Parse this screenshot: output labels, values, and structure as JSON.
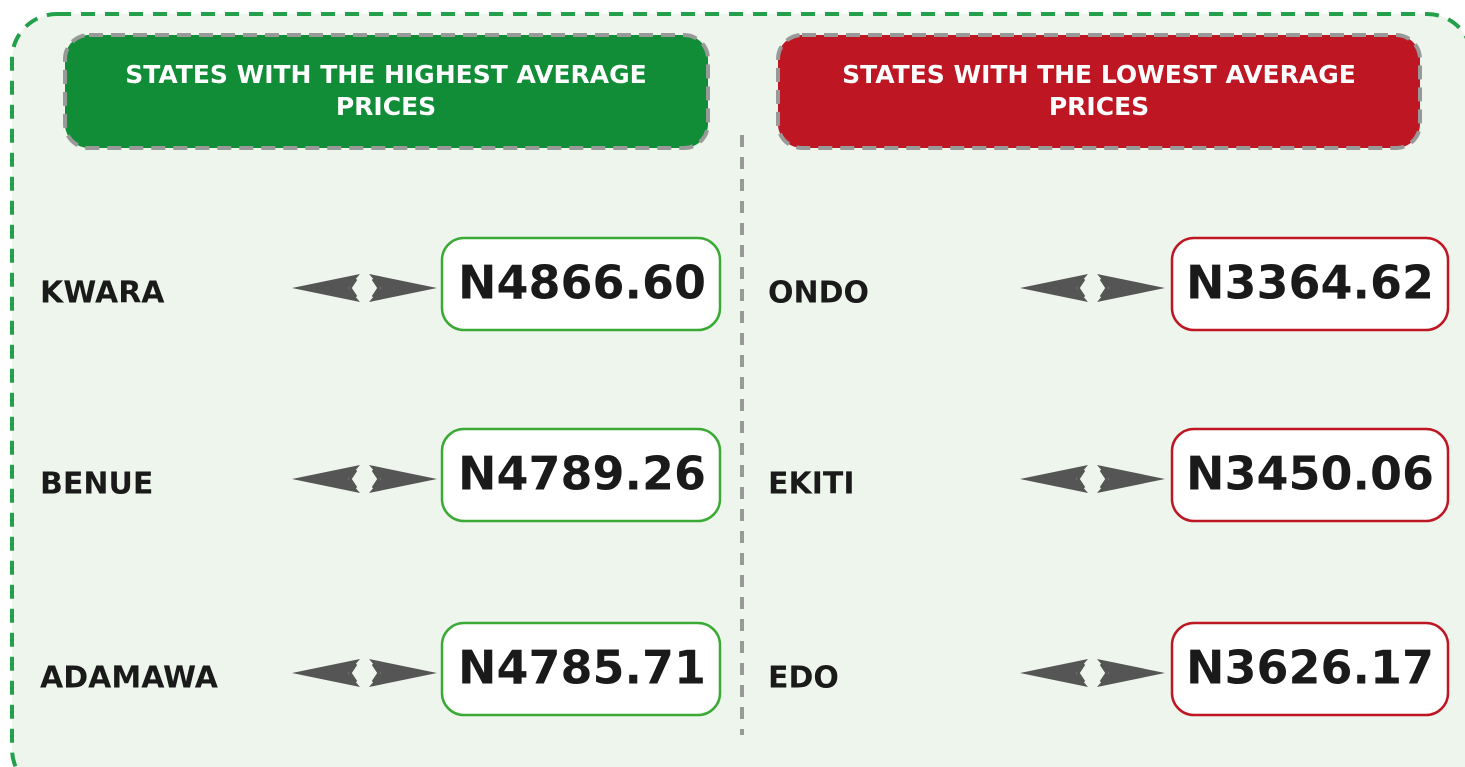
{
  "left": {
    "title": "STATES WITH THE HIGHEST AVERAGE PRICES",
    "rows": [
      {
        "state": "KWARA",
        "price": "N4866.60"
      },
      {
        "state": "BENUE",
        "price": "N4789.26"
      },
      {
        "state": "ADAMAWA",
        "price": "N4785.71"
      }
    ]
  },
  "right": {
    "title": "STATES WITH THE LOWEST AVERAGE PRICES",
    "rows": [
      {
        "state": "ONDO",
        "price": "N3364.62"
      },
      {
        "state": "EKITI",
        "price": "N3450.06"
      },
      {
        "state": "EDO",
        "price": "N3626.17"
      }
    ]
  }
}
